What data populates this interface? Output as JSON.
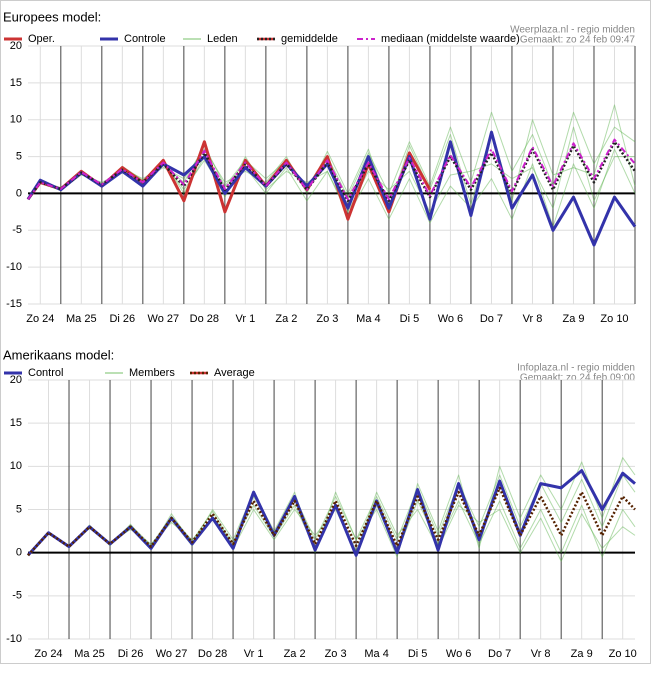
{
  "chart_data": [
    {
      "type": "line",
      "title": "Europees model:",
      "source": "Weerplaza.nl - regio midden",
      "made": "Gemaakt: zo 24 feb 09:47",
      "x": [
        0.2,
        0.5,
        1,
        1.5,
        2,
        2.5,
        3,
        3.5,
        4,
        4.5,
        5,
        5.5,
        6,
        6.5,
        7,
        7.5,
        8,
        8.5,
        9,
        9.5,
        10,
        10.5,
        11,
        11.5,
        12,
        12.5,
        13,
        13.5,
        14,
        14.5,
        15
      ],
      "xlim": [
        0.2,
        15
      ],
      "xticks": [
        {
          "value": 0.5,
          "label": "Zo 24"
        },
        {
          "value": 1.5,
          "label": "Ma 25"
        },
        {
          "value": 2.5,
          "label": "Di 26"
        },
        {
          "value": 3.5,
          "label": "Wo 27"
        },
        {
          "value": 4.5,
          "label": "Do 28"
        },
        {
          "value": 5.5,
          "label": "Vr 1"
        },
        {
          "value": 6.5,
          "label": "Za 2"
        },
        {
          "value": 7.5,
          "label": "Zo 3"
        },
        {
          "value": 8.5,
          "label": "Ma 4"
        },
        {
          "value": 9.5,
          "label": "Di 5"
        },
        {
          "value": 10.5,
          "label": "Wo 6"
        },
        {
          "value": 11.5,
          "label": "Do 7"
        },
        {
          "value": 12.5,
          "label": "Vr 8"
        },
        {
          "value": 13.5,
          "label": "Za 9"
        },
        {
          "value": 14.5,
          "label": "Zo 10"
        }
      ],
      "ylim": [
        -15,
        20
      ],
      "yticks": [
        -15,
        -10,
        -5,
        0,
        5,
        10,
        15,
        20
      ],
      "grid": true,
      "series": [
        {
          "name": "Oper.",
          "color": "#cc3333",
          "style": "solid",
          "values": [
            -0.8,
            1.5,
            0.6,
            3.0,
            1.0,
            3.5,
            1.5,
            4.5,
            -1.0,
            7.0,
            -2.5,
            4.5,
            1.0,
            4.5,
            0.5,
            5.0,
            -3.5,
            4.0,
            -2.5,
            5.5,
            0.5,
            null,
            null,
            null,
            null,
            null,
            null,
            null,
            null,
            null,
            null
          ]
        },
        {
          "name": "Controle",
          "color": "#3333aa",
          "style": "solid",
          "values": [
            -0.8,
            1.8,
            0.5,
            2.8,
            1.0,
            3.0,
            1.0,
            4.0,
            2.5,
            5.0,
            0,
            3.5,
            1.0,
            4.0,
            1.0,
            4.0,
            -2.0,
            5.0,
            -2.0,
            5.0,
            -3.5,
            7.0,
            -3.0,
            8.3,
            -2.0,
            2.5,
            -5.0,
            -0.5,
            -7.0,
            -0.5,
            -4.5
          ]
        },
        {
          "name": "Leden",
          "color": "#55b044",
          "style": "member",
          "runs": [
            [
              -0.8,
              1.7,
              0.6,
              3.1,
              1.0,
              3.7,
              1.8,
              3.5,
              2.0,
              6.0,
              1.5,
              3.0,
              1.5,
              5.0,
              0.0,
              5.7,
              0.0,
              6.0,
              -2.0,
              6.5,
              0.5,
              8.0,
              -1.5,
              8.5,
              -1.0,
              10.0,
              2.5,
              3.5,
              2.5,
              12.0,
              1.0
            ],
            [
              -0.8,
              1.3,
              0.5,
              2.5,
              1.5,
              3.0,
              1.0,
              4.5,
              0.0,
              5.0,
              -0.5,
              5.0,
              0.5,
              3.0,
              1.5,
              3.0,
              -2.5,
              3.0,
              0.5,
              3.0,
              -2.5,
              2.5,
              3.0,
              4.0,
              2.0,
              3.5,
              -2.0,
              9.0,
              -1.0,
              5.0,
              5.0
            ],
            [
              -0.8,
              1.6,
              0.8,
              2.9,
              1.0,
              3.4,
              2.0,
              3.8,
              1.5,
              6.5,
              1.0,
              4.5,
              2.0,
              4.5,
              0.5,
              5.0,
              -0.5,
              5.5,
              0.0,
              7.0,
              1.0,
              9.0,
              1.5,
              11.0,
              3.0,
              8.0,
              1.0,
              11.0,
              4.0,
              9.0,
              7.0
            ],
            [
              -0.8,
              1.4,
              0.4,
              2.6,
              1.3,
              2.8,
              1.2,
              4.2,
              0.5,
              4.5,
              0.0,
              3.5,
              0.0,
              3.5,
              -1.0,
              3.0,
              -3.0,
              2.0,
              -3.5,
              2.0,
              -4.0,
              1.0,
              -2.0,
              2.0,
              -3.5,
              4.0,
              -4.5,
              4.0,
              -2.0,
              6.0,
              0.0
            ]
          ]
        },
        {
          "name": "gemiddelde",
          "color": "#222222",
          "style": "dotted",
          "values": [
            -0.8,
            1.5,
            0.6,
            2.8,
            1.2,
            3.2,
            1.5,
            4.0,
            1.0,
            5.5,
            0.5,
            4.0,
            1.0,
            4.0,
            0.5,
            4.2,
            -1.0,
            4.0,
            -1.0,
            4.5,
            -0.5,
            5.0,
            0.5,
            5.5,
            0,
            6.0,
            0.5,
            6.5,
            1.5,
            7.0,
            3.0
          ]
        },
        {
          "name": "mediaan (middelste waarde)",
          "color": "#cc22cc",
          "style": "dashdot",
          "values": [
            -0.8,
            1.5,
            0.6,
            2.9,
            1.2,
            3.3,
            1.5,
            4.2,
            1.2,
            5.8,
            0.6,
            4.2,
            1.0,
            4.2,
            0.5,
            4.5,
            -0.8,
            4.2,
            -0.8,
            4.8,
            -0.3,
            5.2,
            0.8,
            6.0,
            0.3,
            6.3,
            1.0,
            6.8,
            2.0,
            7.3,
            4.0
          ]
        }
      ]
    },
    {
      "type": "line",
      "title": "Amerikaans model:",
      "source": "Infoplaza.nl - regio midden",
      "made": "Gemaakt: zo 24 feb 09:00",
      "x": [
        0,
        0.5,
        1,
        1.5,
        2,
        2.5,
        3,
        3.5,
        4,
        4.5,
        5,
        5.5,
        6,
        6.5,
        7,
        7.5,
        8,
        8.5,
        9,
        9.5,
        10,
        10.5,
        11,
        11.5,
        12,
        12.5,
        13,
        13.5,
        14,
        14.5,
        14.8
      ],
      "xlim": [
        0,
        14.8
      ],
      "xticks": [
        {
          "value": 0.5,
          "label": "Zo 24"
        },
        {
          "value": 1.5,
          "label": "Ma 25"
        },
        {
          "value": 2.5,
          "label": "Di 26"
        },
        {
          "value": 3.5,
          "label": "Wo 27"
        },
        {
          "value": 4.5,
          "label": "Do 28"
        },
        {
          "value": 5.5,
          "label": "Vr 1"
        },
        {
          "value": 6.5,
          "label": "Za 2"
        },
        {
          "value": 7.5,
          "label": "Zo 3"
        },
        {
          "value": 8.5,
          "label": "Ma 4"
        },
        {
          "value": 9.5,
          "label": "Di 5"
        },
        {
          "value": 10.5,
          "label": "Wo 6"
        },
        {
          "value": 11.5,
          "label": "Do 7"
        },
        {
          "value": 12.5,
          "label": "Vr 8"
        },
        {
          "value": 13.5,
          "label": "Za 9"
        },
        {
          "value": 14.5,
          "label": "Zo 10"
        }
      ],
      "ylim": [
        -10,
        20
      ],
      "yticks": [
        -10,
        -5,
        0,
        5,
        10,
        15,
        20
      ],
      "grid": true,
      "series": [
        {
          "name": "Control",
          "color": "#3333aa",
          "style": "solid",
          "values": [
            -0.3,
            2.3,
            0.7,
            3.0,
            1.0,
            3.0,
            0.5,
            4.0,
            1.0,
            4.0,
            0.5,
            7.0,
            2.0,
            6.5,
            0.3,
            5.5,
            -0.3,
            6.0,
            0,
            7.3,
            0.3,
            8.0,
            1.5,
            8.3,
            2.0,
            8.0,
            7.5,
            9.5,
            5.0,
            9.2,
            8.0
          ]
        },
        {
          "name": "Members",
          "color": "#55b044",
          "style": "member",
          "runs": [
            [
              -0.3,
              2.4,
              0.6,
              3.2,
              0.8,
              3.3,
              0.5,
              4.5,
              1.0,
              5.0,
              1.5,
              7.0,
              2.5,
              7.0,
              0.0,
              7.0,
              1.5,
              5.0,
              -0.5,
              8.0,
              2.5,
              9.0,
              0.5,
              10.0,
              4.0,
              9.0,
              5.0,
              10.5,
              4.0,
              11.0,
              9.0
            ],
            [
              -0.3,
              2.2,
              0.8,
              2.8,
              1.2,
              2.7,
              1.0,
              3.5,
              1.5,
              4.0,
              0.5,
              5.0,
              1.5,
              5.0,
              2.0,
              5.0,
              0.0,
              7.0,
              2.0,
              5.0,
              0.5,
              5.5,
              3.5,
              5.0,
              0.0,
              4.0,
              -1.0,
              4.5,
              0.5,
              3.0,
              2.0
            ],
            [
              -0.3,
              2.3,
              0.6,
              3.1,
              1.1,
              3.2,
              0.9,
              4.2,
              1.4,
              4.8,
              0.8,
              6.5,
              2.2,
              6.5,
              1.5,
              6.5,
              1.5,
              6.5,
              1.5,
              7.5,
              2.0,
              8.0,
              3.0,
              9.0,
              3.0,
              8.0,
              3.5,
              8.5,
              3.0,
              9.0,
              7.0
            ],
            [
              -0.3,
              2.2,
              0.7,
              2.9,
              0.9,
              2.8,
              0.4,
              3.8,
              0.8,
              4.2,
              1.2,
              5.5,
              1.8,
              5.5,
              0.5,
              5.5,
              0.2,
              5.5,
              0.0,
              6.0,
              1.0,
              6.0,
              1.0,
              6.0,
              0.5,
              5.0,
              0.0,
              5.5,
              -0.5,
              5.0,
              3.0
            ]
          ]
        },
        {
          "name": "Average",
          "color": "#552200",
          "style": "dotted",
          "values": [
            -0.3,
            2.3,
            0.7,
            3.0,
            1.0,
            3.0,
            0.7,
            4.0,
            1.2,
            4.5,
            1.0,
            6.0,
            2.0,
            6.0,
            1.0,
            6.0,
            0.8,
            6.0,
            0.8,
            6.5,
            1.5,
            7.0,
            2.0,
            7.5,
            2.0,
            6.5,
            2.0,
            7.0,
            2.0,
            6.5,
            5.0
          ]
        }
      ]
    }
  ]
}
